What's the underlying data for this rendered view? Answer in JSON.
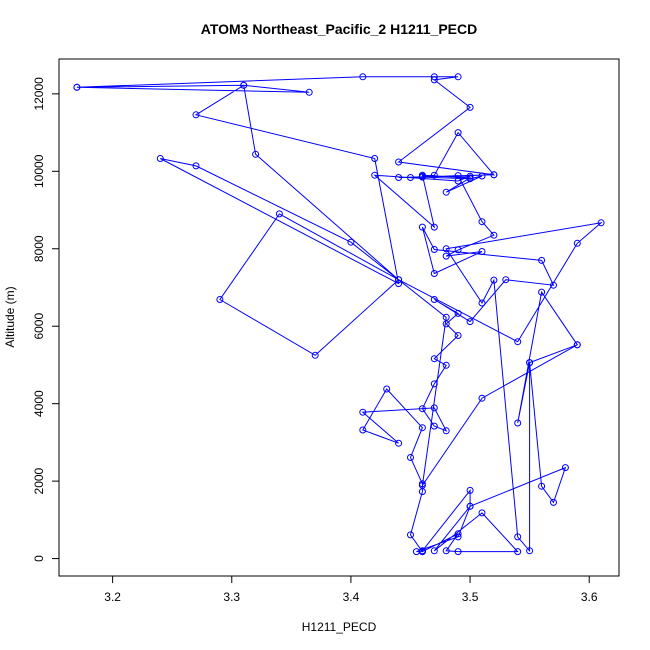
{
  "chart_data": {
    "type": "line",
    "title": "ATOM3 Northeast_Pacific_2 H1211_PECD",
    "xlabel": "H1211_PECD",
    "ylabel": "Altitude (m)",
    "xlim": [
      3.155,
      3.625
    ],
    "ylim": [
      -450,
      12900
    ],
    "xticks": [
      "3.2",
      "3.3",
      "3.4",
      "3.5",
      "3.6"
    ],
    "yticks": [
      "0",
      "2000",
      "4000",
      "6000",
      "8000",
      "10000",
      "12000"
    ],
    "xtick_values": [
      3.2,
      3.3,
      3.4,
      3.5,
      3.6
    ],
    "ytick_values": [
      0,
      2000,
      4000,
      6000,
      8000,
      10000,
      12000
    ],
    "grid": false,
    "legend": "none",
    "series": [
      {
        "color": "#0000ff",
        "markers": "open-circle",
        "lines": true,
        "points": [
          [
            3.17,
            12170
          ],
          [
            3.31,
            12220
          ],
          [
            3.365,
            12040
          ],
          [
            3.17,
            12170
          ],
          [
            3.41,
            12440
          ],
          [
            3.47,
            12440
          ],
          [
            3.49,
            12440
          ],
          [
            3.47,
            12360
          ],
          [
            3.5,
            11650
          ],
          [
            3.44,
            10240
          ],
          [
            3.52,
            9910
          ],
          [
            3.49,
            11000
          ],
          [
            3.47,
            9900
          ],
          [
            3.46,
            9870
          ],
          [
            3.5,
            9870
          ],
          [
            3.49,
            9750
          ],
          [
            3.42,
            9900
          ],
          [
            3.47,
            8560
          ],
          [
            3.46,
            9900
          ],
          [
            3.5,
            9830
          ],
          [
            3.48,
            9460
          ],
          [
            3.51,
            9880
          ],
          [
            3.5,
            9810
          ],
          [
            3.46,
            9850
          ],
          [
            3.52,
            9910
          ],
          [
            3.44,
            9840
          ],
          [
            3.45,
            9840
          ],
          [
            3.49,
            9890
          ],
          [
            3.51,
            8700
          ],
          [
            3.52,
            8350
          ],
          [
            3.49,
            7970
          ],
          [
            3.48,
            7810
          ],
          [
            3.51,
            7930
          ],
          [
            3.47,
            7360
          ],
          [
            3.46,
            8560
          ],
          [
            3.47,
            7980
          ],
          [
            3.56,
            7700
          ],
          [
            3.57,
            7060
          ],
          [
            3.53,
            7200
          ],
          [
            3.5,
            6120
          ],
          [
            3.47,
            6690
          ],
          [
            3.49,
            6330
          ],
          [
            3.48,
            6060
          ],
          [
            3.49,
            5760
          ],
          [
            3.47,
            5160
          ],
          [
            3.48,
            4990
          ],
          [
            3.47,
            4510
          ],
          [
            3.46,
            3870
          ],
          [
            3.47,
            3420
          ],
          [
            3.48,
            3300
          ],
          [
            3.47,
            3890
          ],
          [
            3.41,
            3780
          ],
          [
            3.44,
            2980
          ],
          [
            3.41,
            3320
          ],
          [
            3.43,
            4380
          ],
          [
            3.46,
            3380
          ],
          [
            3.45,
            2610
          ],
          [
            3.46,
            1930
          ],
          [
            3.46,
            1730
          ],
          [
            3.45,
            610
          ],
          [
            3.46,
            180
          ],
          [
            3.455,
            180
          ],
          [
            3.49,
            560
          ],
          [
            3.5,
            1350
          ],
          [
            3.5,
            1760
          ],
          [
            3.46,
            200
          ],
          [
            3.46,
            180
          ],
          [
            3.49,
            640
          ],
          [
            3.48,
            200
          ],
          [
            3.49,
            180
          ],
          [
            3.54,
            180
          ],
          [
            3.51,
            1180
          ],
          [
            3.47,
            200
          ],
          [
            3.5,
            1350
          ],
          [
            3.58,
            2350
          ],
          [
            3.57,
            1450
          ],
          [
            3.56,
            1870
          ],
          [
            3.55,
            5060
          ],
          [
            3.54,
            3500
          ],
          [
            3.56,
            6880
          ],
          [
            3.59,
            5520
          ],
          [
            3.55,
            5060
          ],
          [
            3.55,
            200
          ],
          [
            3.54,
            560
          ],
          [
            3.52,
            7190
          ],
          [
            3.51,
            6600
          ],
          [
            3.48,
            8000
          ],
          [
            3.61,
            8670
          ],
          [
            3.59,
            8140
          ],
          [
            3.54,
            5600
          ],
          [
            3.44,
            7200
          ],
          [
            3.34,
            8900
          ],
          [
            3.29,
            6690
          ],
          [
            3.37,
            5250
          ],
          [
            3.44,
            7200
          ],
          [
            3.32,
            10440
          ],
          [
            3.31,
            12220
          ],
          [
            3.27,
            11460
          ],
          [
            3.42,
            10330
          ],
          [
            3.44,
            7100
          ],
          [
            3.24,
            10330
          ],
          [
            3.27,
            10140
          ],
          [
            3.4,
            8170
          ],
          [
            3.48,
            6230
          ],
          [
            3.46,
            1890
          ],
          [
            3.51,
            4140
          ],
          [
            3.59,
            5520
          ]
        ]
      }
    ]
  }
}
